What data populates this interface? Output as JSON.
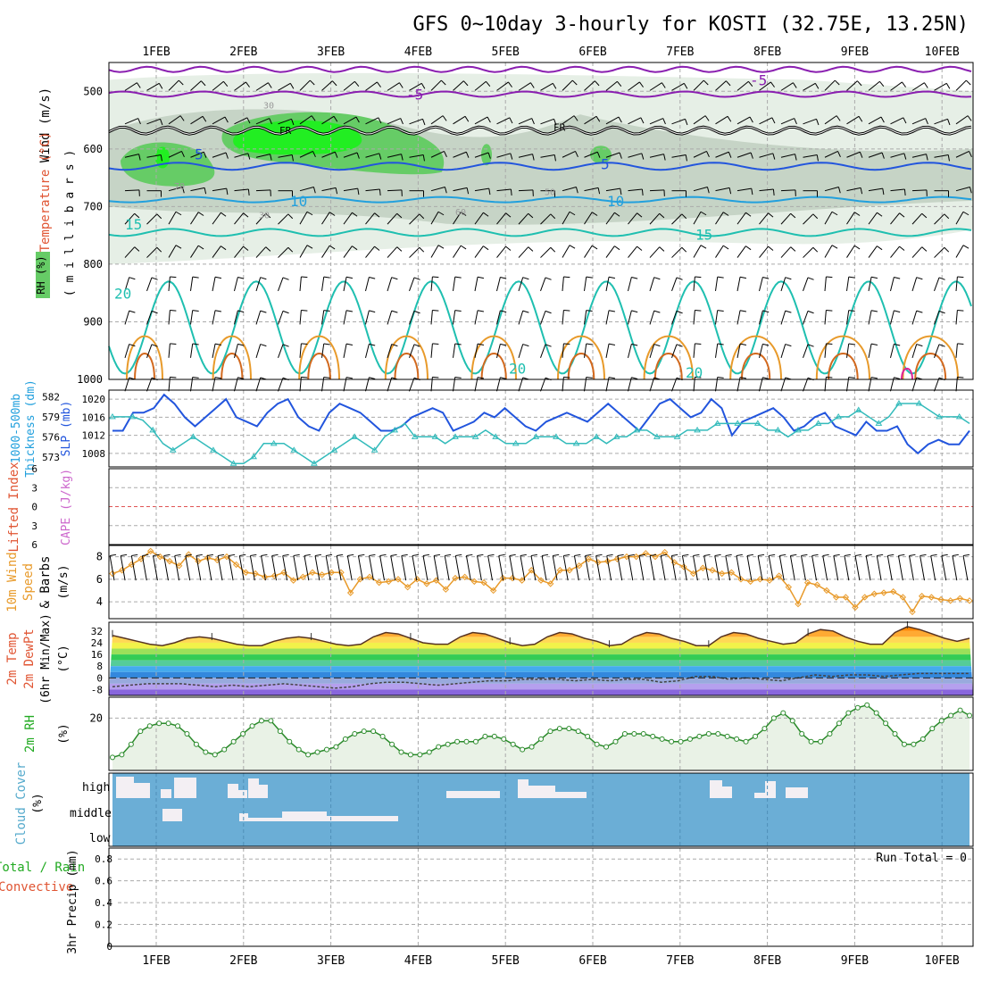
{
  "title": "GFS 0~10day 3-hourly for KOSTI (32.75E, 13.25N)",
  "run_total_label": "Run Total = 0",
  "colors": {
    "purple": "#8a1fb0",
    "blue": "#2255dd",
    "lightblue": "#22a0dd",
    "teal": "#1fbfb0",
    "cyan": "#33bbbb",
    "orange": "#e89a2a",
    "red": "#d03b2a",
    "green": "#22aa22",
    "magenta": "#dd2299",
    "rh_light": "#e6efe6",
    "rh_mid": "#c6d4c6",
    "rh_green": "#66cc66",
    "rh_bright": "#22ee22",
    "cloud_bg": "#6baed6",
    "cloud_fill": "#f3eff3",
    "rh2m_fill": "#e9f2e6"
  },
  "chart_data": [
    {
      "type": "line",
      "panel": "upper-air cross-section",
      "x_labels": [
        "1FEB",
        "2FEB",
        "3FEB",
        "4FEB",
        "5FEB",
        "6FEB",
        "7FEB",
        "8FEB",
        "9FEB",
        "10FEB"
      ],
      "y_ticks": [
        500,
        600,
        700,
        800,
        900,
        1000
      ],
      "y_units_label": "millibars",
      "y_title_parts": [
        "Wind (m/s)",
        "Temperature (°C)",
        "RH (%)"
      ],
      "ylim": [
        450,
        1000
      ],
      "contour_labels": [
        "-5",
        "-5",
        "FR",
        "FR",
        "5",
        "5",
        "10",
        "10",
        "15",
        "15",
        "20",
        "20",
        "20",
        "30",
        "30",
        "50",
        "60",
        "70"
      ],
      "temperature_isotherms": [
        {
          "label": "-5",
          "pressure": [
            470,
            505
          ]
        },
        {
          "label": "FR",
          "pressure": 580
        },
        {
          "label": "5",
          "pressure": 630
        },
        {
          "label": "10",
          "pressure": 690
        },
        {
          "label": "15",
          "pressure": 745
        },
        {
          "label": "20",
          "pressure": [
            830,
            1000
          ]
        }
      ]
    },
    {
      "type": "line",
      "panel": "thickness and SLP",
      "y_left_ticks": [
        573,
        576,
        579,
        582
      ],
      "y_right_ticks": [
        1008,
        1012,
        1016,
        1020
      ],
      "y_left_label": "1000-500mb Thickness (dm)",
      "y_right_label": "SLP (mb)",
      "series": [
        {
          "name": "SLP (mb)",
          "values": [
            1013,
            1013,
            1017,
            1017,
            1018,
            1021,
            1019,
            1016,
            1014,
            1016,
            1018,
            1020,
            1016,
            1015,
            1014,
            1017,
            1019,
            1020,
            1016,
            1014,
            1013,
            1017,
            1019,
            1018,
            1017,
            1015,
            1013,
            1013,
            1014,
            1016,
            1017,
            1018,
            1017,
            1013,
            1014,
            1015,
            1017,
            1016,
            1018,
            1016,
            1014,
            1013,
            1015,
            1016,
            1017,
            1016,
            1015,
            1017,
            1019,
            1017,
            1015,
            1013,
            1016,
            1019,
            1020,
            1018,
            1016,
            1017,
            1020,
            1018,
            1012,
            1015,
            1016,
            1017,
            1018,
            1016,
            1013,
            1014,
            1016,
            1017,
            1014,
            1013,
            1012,
            1015,
            1013,
            1013,
            1014,
            1010,
            1008,
            1010,
            1011,
            1010,
            1010,
            1013
          ]
        },
        {
          "name": "Thickness (dm)",
          "values": [
            579,
            579,
            579,
            578.5,
            577,
            575,
            574,
            575,
            576,
            575,
            574,
            573,
            572,
            572,
            573,
            575,
            575,
            575,
            574,
            573,
            572,
            573,
            574,
            575,
            576,
            575,
            574,
            576,
            577,
            578,
            576,
            576,
            576,
            575,
            576,
            576,
            576,
            577,
            576,
            575,
            575,
            575,
            576,
            576,
            576,
            575,
            575,
            575,
            576,
            575,
            576,
            576,
            577,
            577,
            576,
            576,
            576,
            577,
            577,
            577,
            578,
            578,
            578,
            578,
            578,
            577,
            577,
            576,
            577,
            577,
            578,
            578,
            579,
            579,
            580,
            579,
            578,
            579,
            581,
            581,
            581,
            580,
            579,
            579,
            579,
            578
          ]
        }
      ]
    },
    {
      "type": "line",
      "panel": "Lifted Index / CAPE",
      "y_ticks": [
        -6,
        -3,
        0,
        3,
        6
      ],
      "y_labels": [
        "Lifted Index",
        "CAPE (J/kg)"
      ],
      "series": []
    },
    {
      "type": "line",
      "panel": "10m wind",
      "y_ticks": [
        4,
        6,
        8
      ],
      "y_labels": [
        "10m Wind",
        "Speed",
        "& Barbs",
        "(m/s)"
      ],
      "series": [
        {
          "name": "10m Wind Speed",
          "values": [
            6.5,
            6.8,
            7.3,
            7.8,
            8.5,
            8.0,
            7.6,
            7.2,
            8.2,
            7.6,
            7.9,
            7.7,
            8.0,
            7.3,
            6.6,
            6.5,
            6.2,
            6.3,
            6.6,
            5.9,
            6.2,
            6.6,
            6.4,
            6.6,
            6.6,
            4.8,
            6.0,
            6.2,
            5.7,
            5.8,
            6.0,
            5.3,
            6.0,
            5.6,
            5.9,
            5.1,
            6.1,
            6.2,
            5.8,
            5.7,
            5.0,
            6.1,
            6.1,
            5.9,
            6.8,
            5.9,
            5.6,
            6.8,
            6.8,
            7.2,
            7.8,
            7.5,
            7.6,
            7.8,
            8.0,
            8.0,
            8.3,
            8.0,
            8.4,
            7.5,
            7.1,
            6.5,
            7.0,
            6.8,
            6.5,
            6.6,
            6.0,
            5.8,
            6.0,
            5.9,
            6.3,
            5.3,
            3.8,
            5.7,
            5.5,
            5.0,
            4.4,
            4.4,
            3.5,
            4.4,
            4.7,
            4.8,
            4.9,
            4.4,
            3.1,
            4.5,
            4.4,
            4.2,
            4.1,
            4.3,
            4.1
          ]
        }
      ]
    },
    {
      "type": "area",
      "panel": "2m temperature",
      "y_ticks": [
        -8,
        0,
        8,
        16,
        24,
        32
      ],
      "y_labels": [
        "2m Temp",
        "2m DewPt",
        "(6hr Min/Max)",
        "(°C)"
      ],
      "series": [
        {
          "name": "2m Temp",
          "values": [
            29,
            27,
            25,
            23,
            22,
            24,
            27,
            28,
            27,
            25,
            23,
            22,
            22,
            25,
            27,
            28,
            27,
            25,
            23,
            22,
            23,
            28,
            31,
            30,
            27,
            24,
            23,
            23,
            28,
            31,
            30,
            27,
            24,
            22,
            23,
            28,
            31,
            30,
            27,
            25,
            22,
            23,
            28,
            31,
            30,
            27,
            25,
            22,
            22,
            28,
            31,
            30,
            27,
            25,
            23,
            24,
            30,
            33,
            32,
            28,
            25,
            23,
            23,
            31,
            35,
            33,
            30,
            27,
            25,
            27
          ]
        },
        {
          "name": "2m DewPt",
          "values": [
            -6,
            -5,
            -4,
            -4,
            -4,
            -5,
            -6,
            -5,
            -6,
            -5,
            -4,
            -5,
            -6,
            -7,
            -6,
            -4,
            -3,
            -3,
            -4,
            -5,
            -4,
            -3,
            -2,
            -2,
            -1,
            -1,
            -1,
            -2,
            -1,
            -2,
            -1,
            -1,
            -3,
            -2,
            1,
            1,
            -1,
            0,
            -1,
            -2,
            0,
            2,
            1,
            2,
            2,
            1,
            2,
            3,
            3,
            3,
            3
          ]
        }
      ]
    },
    {
      "type": "area",
      "panel": "2m RH",
      "y_ticks": [
        20
      ],
      "y_labels": [
        "2m RH",
        "(%)"
      ],
      "series": [
        {
          "name": "2m RH",
          "values": [
            5,
            6,
            10,
            15,
            17,
            18,
            18,
            17,
            14,
            10,
            7,
            6,
            8,
            11,
            14,
            17,
            19,
            19,
            15,
            11,
            8,
            6,
            7,
            8,
            9,
            12,
            14,
            15,
            15,
            13,
            10,
            7,
            6,
            6,
            7,
            9,
            10,
            11,
            11,
            11,
            13,
            13,
            12,
            10,
            8,
            9,
            12,
            15,
            16,
            16,
            15,
            13,
            10,
            9,
            11,
            14,
            14,
            14,
            13,
            12,
            11,
            11,
            12,
            13,
            14,
            14,
            13,
            12,
            11,
            13,
            16,
            20,
            22,
            19,
            14,
            11,
            11,
            14,
            18,
            22,
            24,
            25,
            22,
            18,
            14,
            10,
            10,
            12,
            16,
            19,
            21,
            23,
            21
          ]
        }
      ]
    },
    {
      "type": "area",
      "panel": "cloud cover",
      "y_labels": [
        "Cloud Cover",
        "(%)"
      ],
      "levels": [
        "high",
        "middle",
        "low"
      ]
    },
    {
      "type": "bar",
      "panel": "3hr precipitation",
      "y_ticks": [
        0,
        0.2,
        0.4,
        0.6,
        0.8
      ],
      "y_labels": [
        "Total / Rain",
        "Convective",
        "3hr Precip (mm)"
      ],
      "series": []
    }
  ]
}
